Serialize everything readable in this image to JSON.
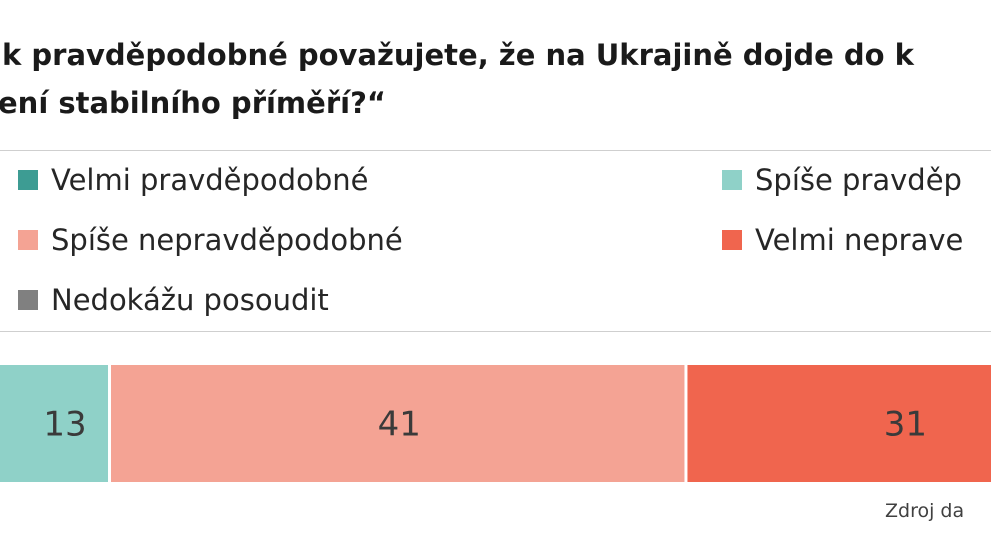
{
  "chart_data": {
    "type": "bar",
    "orientation": "horizontal",
    "stacked": true,
    "title_lines": [
      "k pravděpodobné  považujete, že na Ukrajině dojde do k",
      "ení stabilního příměří?“"
    ],
    "legend_position": "top",
    "series": [
      {
        "name": "Velmi pravděpodobné",
        "color": "#3d9c93",
        "value": null
      },
      {
        "name": "Spíše pravděp",
        "color": "#8fd1c8",
        "value": 13,
        "label": "13"
      },
      {
        "name": "Spíše nepravděpodobné",
        "color": "#f4a394",
        "value": 41,
        "label": "41"
      },
      {
        "name": "Velmi neprave",
        "color": "#f0654e",
        "value": 31,
        "label": "31"
      },
      {
        "name": "Nedokážu posoudit",
        "color": "#808080",
        "value": null
      }
    ],
    "grid": false
  },
  "source_note": "Zdroj da"
}
